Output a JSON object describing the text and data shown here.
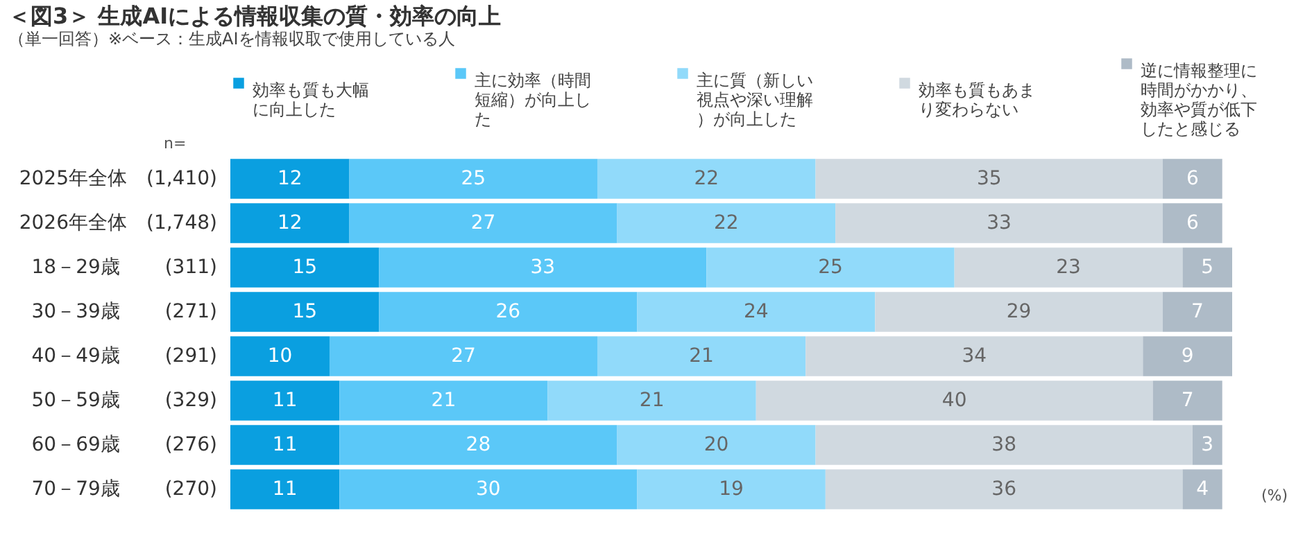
{
  "chart_data": {
    "type": "bar",
    "orientation": "horizontal",
    "stacked": true,
    "data_labels": true,
    "legend": "top",
    "tick_labels": "y",
    "title": "＜図3＞ 生成AIによる情報収集の質・効率の向上",
    "subtitle": "（単一回答）※ベース：生成AIを情報収取で使用している人",
    "categories": [
      "2025年全体　(1,410)",
      "2026年全体　(1,748)",
      "18－29歳　　 (311)",
      "30－39歳　　 (271)",
      "40－49歳　　 (291)",
      "50－59歳　　 (329)",
      "60－69歳　　 (276)",
      "70－79歳　　 (270)"
    ],
    "series": [
      {
        "name": "効率も質も大幅に向上した",
        "color": "#0a9fe0",
        "values": [
          12,
          12,
          15,
          15,
          10,
          11,
          11,
          11
        ]
      },
      {
        "name": "主に効率（時間短縮）が向上した",
        "color": "#5bc8f8",
        "values": [
          25,
          27,
          33,
          26,
          27,
          21,
          28,
          30
        ]
      },
      {
        "name": "主に質（新しい視点や深い理解）が向上した",
        "color": "#91dafa",
        "values": [
          22,
          22,
          25,
          24,
          21,
          21,
          20,
          19
        ]
      },
      {
        "name": "効率も質もあまり変わらない",
        "color": "#d0d9e0",
        "values": [
          35,
          33,
          23,
          29,
          34,
          40,
          38,
          36
        ]
      },
      {
        "name": "逆に情報整理に時間がかかり、効率や質が低下したと感じる",
        "color": "#aebbc7",
        "values": [
          6,
          6,
          5,
          7,
          9,
          7,
          3,
          4
        ]
      }
    ],
    "annotations": [
      "n=",
      "(%)"
    ]
  }
}
